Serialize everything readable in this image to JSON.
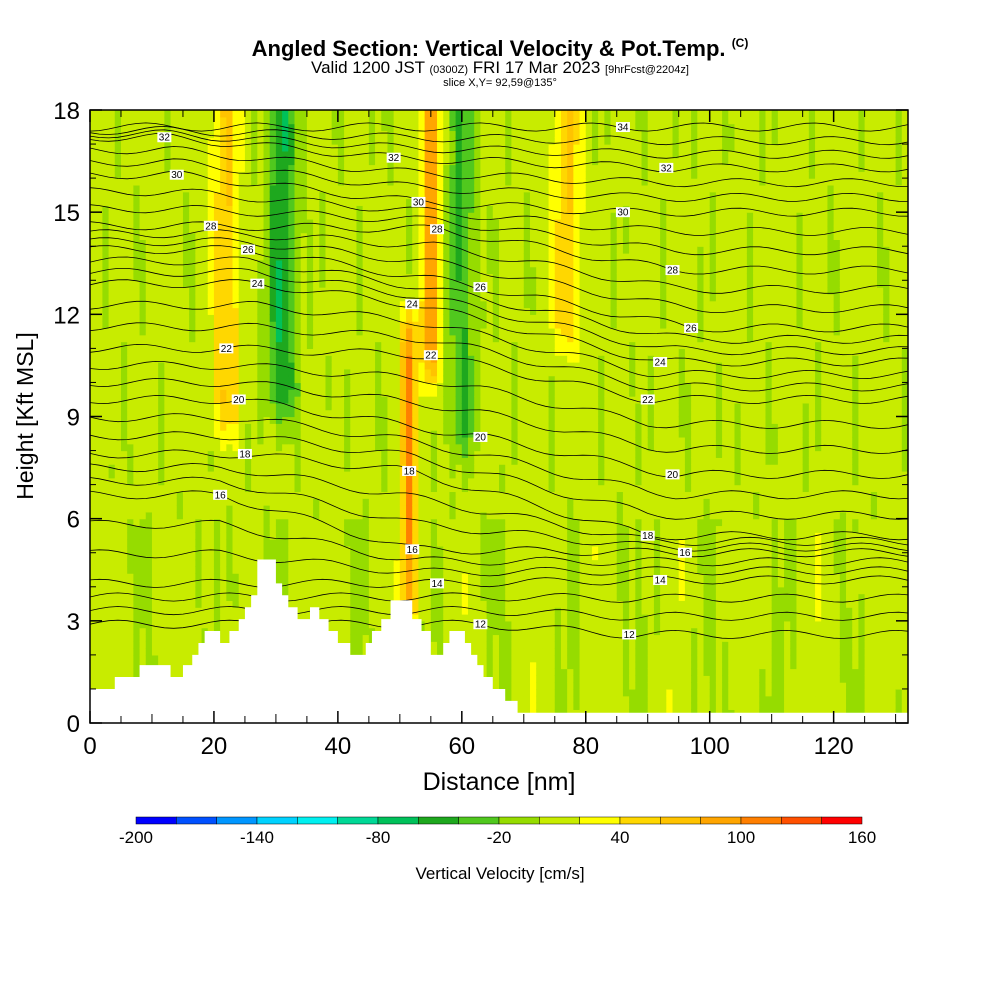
{
  "header": {
    "title": "Angled Section: Vertical Velocity & Pot.Temp.",
    "title_units": "(C)",
    "valid_main": "Valid 1200 JST",
    "valid_zulu": "(0300Z)",
    "valid_date": "FRI 17 Mar 2023",
    "forecast_tag": "[9hrFcst@2204z]",
    "slice_info": "slice X,Y= 92,59@135°"
  },
  "chart_data": {
    "type": "heatmap",
    "xlabel": "Distance [nm]",
    "ylabel": "Height [Kft MSL]",
    "xlim": [
      0,
      132
    ],
    "ylim": [
      0,
      18
    ],
    "x_ticks": [
      0,
      20,
      40,
      60,
      80,
      100,
      120
    ],
    "y_ticks": [
      0,
      3,
      6,
      9,
      12,
      15,
      18
    ],
    "colorbar": {
      "label": "Vertical Velocity [cm/s]",
      "range": [
        -200,
        160
      ],
      "bin_width": 20,
      "tick_values": [
        -200,
        -140,
        -80,
        -20,
        40,
        100,
        160
      ],
      "colors": [
        "#0000ff",
        "#0050ff",
        "#0096ff",
        "#00d2ff",
        "#00f0f0",
        "#00d896",
        "#00c15a",
        "#1ea81e",
        "#50c81e",
        "#96dc00",
        "#c8ec00",
        "#ffff00",
        "#ffd700",
        "#ffc300",
        "#ffa500",
        "#ff7f00",
        "#ff5000",
        "#ff0000",
        "#dc0000",
        "#b4003c",
        "#8c0064",
        "#5a0096"
      ]
    },
    "velocity_features": [
      {
        "sign": "updraft",
        "x_nm": 22,
        "y_kft": [
          9.5,
          18
        ],
        "peak_cm_s": 60
      },
      {
        "sign": "downdraft",
        "x_nm": 31,
        "y_kft": [
          10,
          18
        ],
        "peak_cm_s": -60
      },
      {
        "sign": "updraft",
        "x_nm": 51.5,
        "y_kft": [
          4,
          11
        ],
        "peak_cm_s": 100
      },
      {
        "sign": "updraft",
        "x_nm": 55,
        "y_kft": [
          11,
          18
        ],
        "peak_cm_s": 100
      },
      {
        "sign": "downdraft",
        "x_nm": 60,
        "y_kft": [
          9,
          18
        ],
        "peak_cm_s": -40
      },
      {
        "sign": "updraft",
        "x_nm": 77,
        "y_kft": [
          12,
          18
        ],
        "peak_cm_s": 60
      }
    ],
    "contours": {
      "field": "potential temperature",
      "levels": [
        12,
        14,
        16,
        18,
        20,
        22,
        24,
        26,
        28,
        30,
        32,
        34
      ],
      "labels": [
        {
          "text": "32",
          "x": 12,
          "y": 17.2
        },
        {
          "text": "32",
          "x": 49,
          "y": 16.6
        },
        {
          "text": "34",
          "x": 86,
          "y": 17.5
        },
        {
          "text": "32",
          "x": 93,
          "y": 16.3
        },
        {
          "text": "30",
          "x": 14,
          "y": 16.1
        },
        {
          "text": "30",
          "x": 53,
          "y": 15.3
        },
        {
          "text": "30",
          "x": 86,
          "y": 15.0
        },
        {
          "text": "28",
          "x": 19.5,
          "y": 14.6
        },
        {
          "text": "28",
          "x": 56,
          "y": 14.5
        },
        {
          "text": "28",
          "x": 94,
          "y": 13.3
        },
        {
          "text": "26",
          "x": 25.5,
          "y": 13.9
        },
        {
          "text": "26",
          "x": 63,
          "y": 12.8
        },
        {
          "text": "26",
          "x": 97,
          "y": 11.6
        },
        {
          "text": "24",
          "x": 27,
          "y": 12.9
        },
        {
          "text": "24",
          "x": 52,
          "y": 12.3
        },
        {
          "text": "24",
          "x": 92,
          "y": 10.6
        },
        {
          "text": "22",
          "x": 22,
          "y": 11.0
        },
        {
          "text": "22",
          "x": 55,
          "y": 10.8
        },
        {
          "text": "22",
          "x": 90,
          "y": 9.5
        },
        {
          "text": "20",
          "x": 24,
          "y": 9.5
        },
        {
          "text": "20",
          "x": 63,
          "y": 8.4
        },
        {
          "text": "20",
          "x": 94,
          "y": 7.3
        },
        {
          "text": "18",
          "x": 25,
          "y": 7.9
        },
        {
          "text": "18",
          "x": 51.5,
          "y": 7.4
        },
        {
          "text": "18",
          "x": 90,
          "y": 5.5
        },
        {
          "text": "16",
          "x": 21,
          "y": 6.7
        },
        {
          "text": "16",
          "x": 52,
          "y": 5.1
        },
        {
          "text": "16",
          "x": 96,
          "y": 5.0
        },
        {
          "text": "14",
          "x": 56,
          "y": 4.1
        },
        {
          "text": "14",
          "x": 92,
          "y": 4.2
        },
        {
          "text": "12",
          "x": 63,
          "y": 2.9
        },
        {
          "text": "12",
          "x": 87,
          "y": 2.6
        }
      ]
    },
    "terrain_kft": [
      [
        0,
        1.0
      ],
      [
        4,
        1.0
      ],
      [
        4,
        1.35
      ],
      [
        8,
        1.35
      ],
      [
        8,
        1.7
      ],
      [
        13,
        1.7
      ],
      [
        13,
        1.35
      ],
      [
        15,
        1.35
      ],
      [
        15,
        1.7
      ],
      [
        16.5,
        1.7
      ],
      [
        16.5,
        2.0
      ],
      [
        17.5,
        2.0
      ],
      [
        17.5,
        2.35
      ],
      [
        18.5,
        2.35
      ],
      [
        18.5,
        2.7
      ],
      [
        21,
        2.7
      ],
      [
        21,
        2.35
      ],
      [
        22.5,
        2.35
      ],
      [
        22.5,
        2.7
      ],
      [
        24,
        2.7
      ],
      [
        24,
        3.05
      ],
      [
        25,
        3.05
      ],
      [
        25,
        3.4
      ],
      [
        26,
        3.4
      ],
      [
        26,
        3.75
      ],
      [
        27,
        3.75
      ],
      [
        27,
        4.8
      ],
      [
        30,
        4.8
      ],
      [
        30,
        4.1
      ],
      [
        31,
        4.1
      ],
      [
        31,
        3.75
      ],
      [
        32,
        3.75
      ],
      [
        32,
        3.4
      ],
      [
        33.5,
        3.4
      ],
      [
        33.5,
        3.05
      ],
      [
        35.5,
        3.05
      ],
      [
        35.5,
        3.4
      ],
      [
        37,
        3.4
      ],
      [
        37,
        3.05
      ],
      [
        38.5,
        3.05
      ],
      [
        38.5,
        2.7
      ],
      [
        40,
        2.7
      ],
      [
        40,
        2.35
      ],
      [
        42,
        2.35
      ],
      [
        42,
        2.0
      ],
      [
        44.5,
        2.0
      ],
      [
        44.5,
        2.35
      ],
      [
        45.5,
        2.35
      ],
      [
        45.5,
        2.7
      ],
      [
        47,
        2.7
      ],
      [
        47,
        3.05
      ],
      [
        48.5,
        3.05
      ],
      [
        48.5,
        3.6
      ],
      [
        52,
        3.6
      ],
      [
        52,
        3.05
      ],
      [
        53.5,
        3.05
      ],
      [
        53.5,
        2.7
      ],
      [
        55,
        2.7
      ],
      [
        55,
        2.0
      ],
      [
        57,
        2.0
      ],
      [
        57,
        2.35
      ],
      [
        58,
        2.35
      ],
      [
        58,
        2.7
      ],
      [
        60.5,
        2.7
      ],
      [
        60.5,
        2.35
      ],
      [
        61.5,
        2.35
      ],
      [
        61.5,
        2.0
      ],
      [
        62.5,
        2.0
      ],
      [
        62.5,
        1.7
      ],
      [
        63.5,
        1.7
      ],
      [
        63.5,
        1.35
      ],
      [
        65,
        1.35
      ],
      [
        65,
        1.0
      ],
      [
        67,
        1.0
      ],
      [
        67,
        0.65
      ],
      [
        69,
        0.65
      ],
      [
        69,
        0.3
      ],
      [
        132,
        0.3
      ]
    ]
  }
}
